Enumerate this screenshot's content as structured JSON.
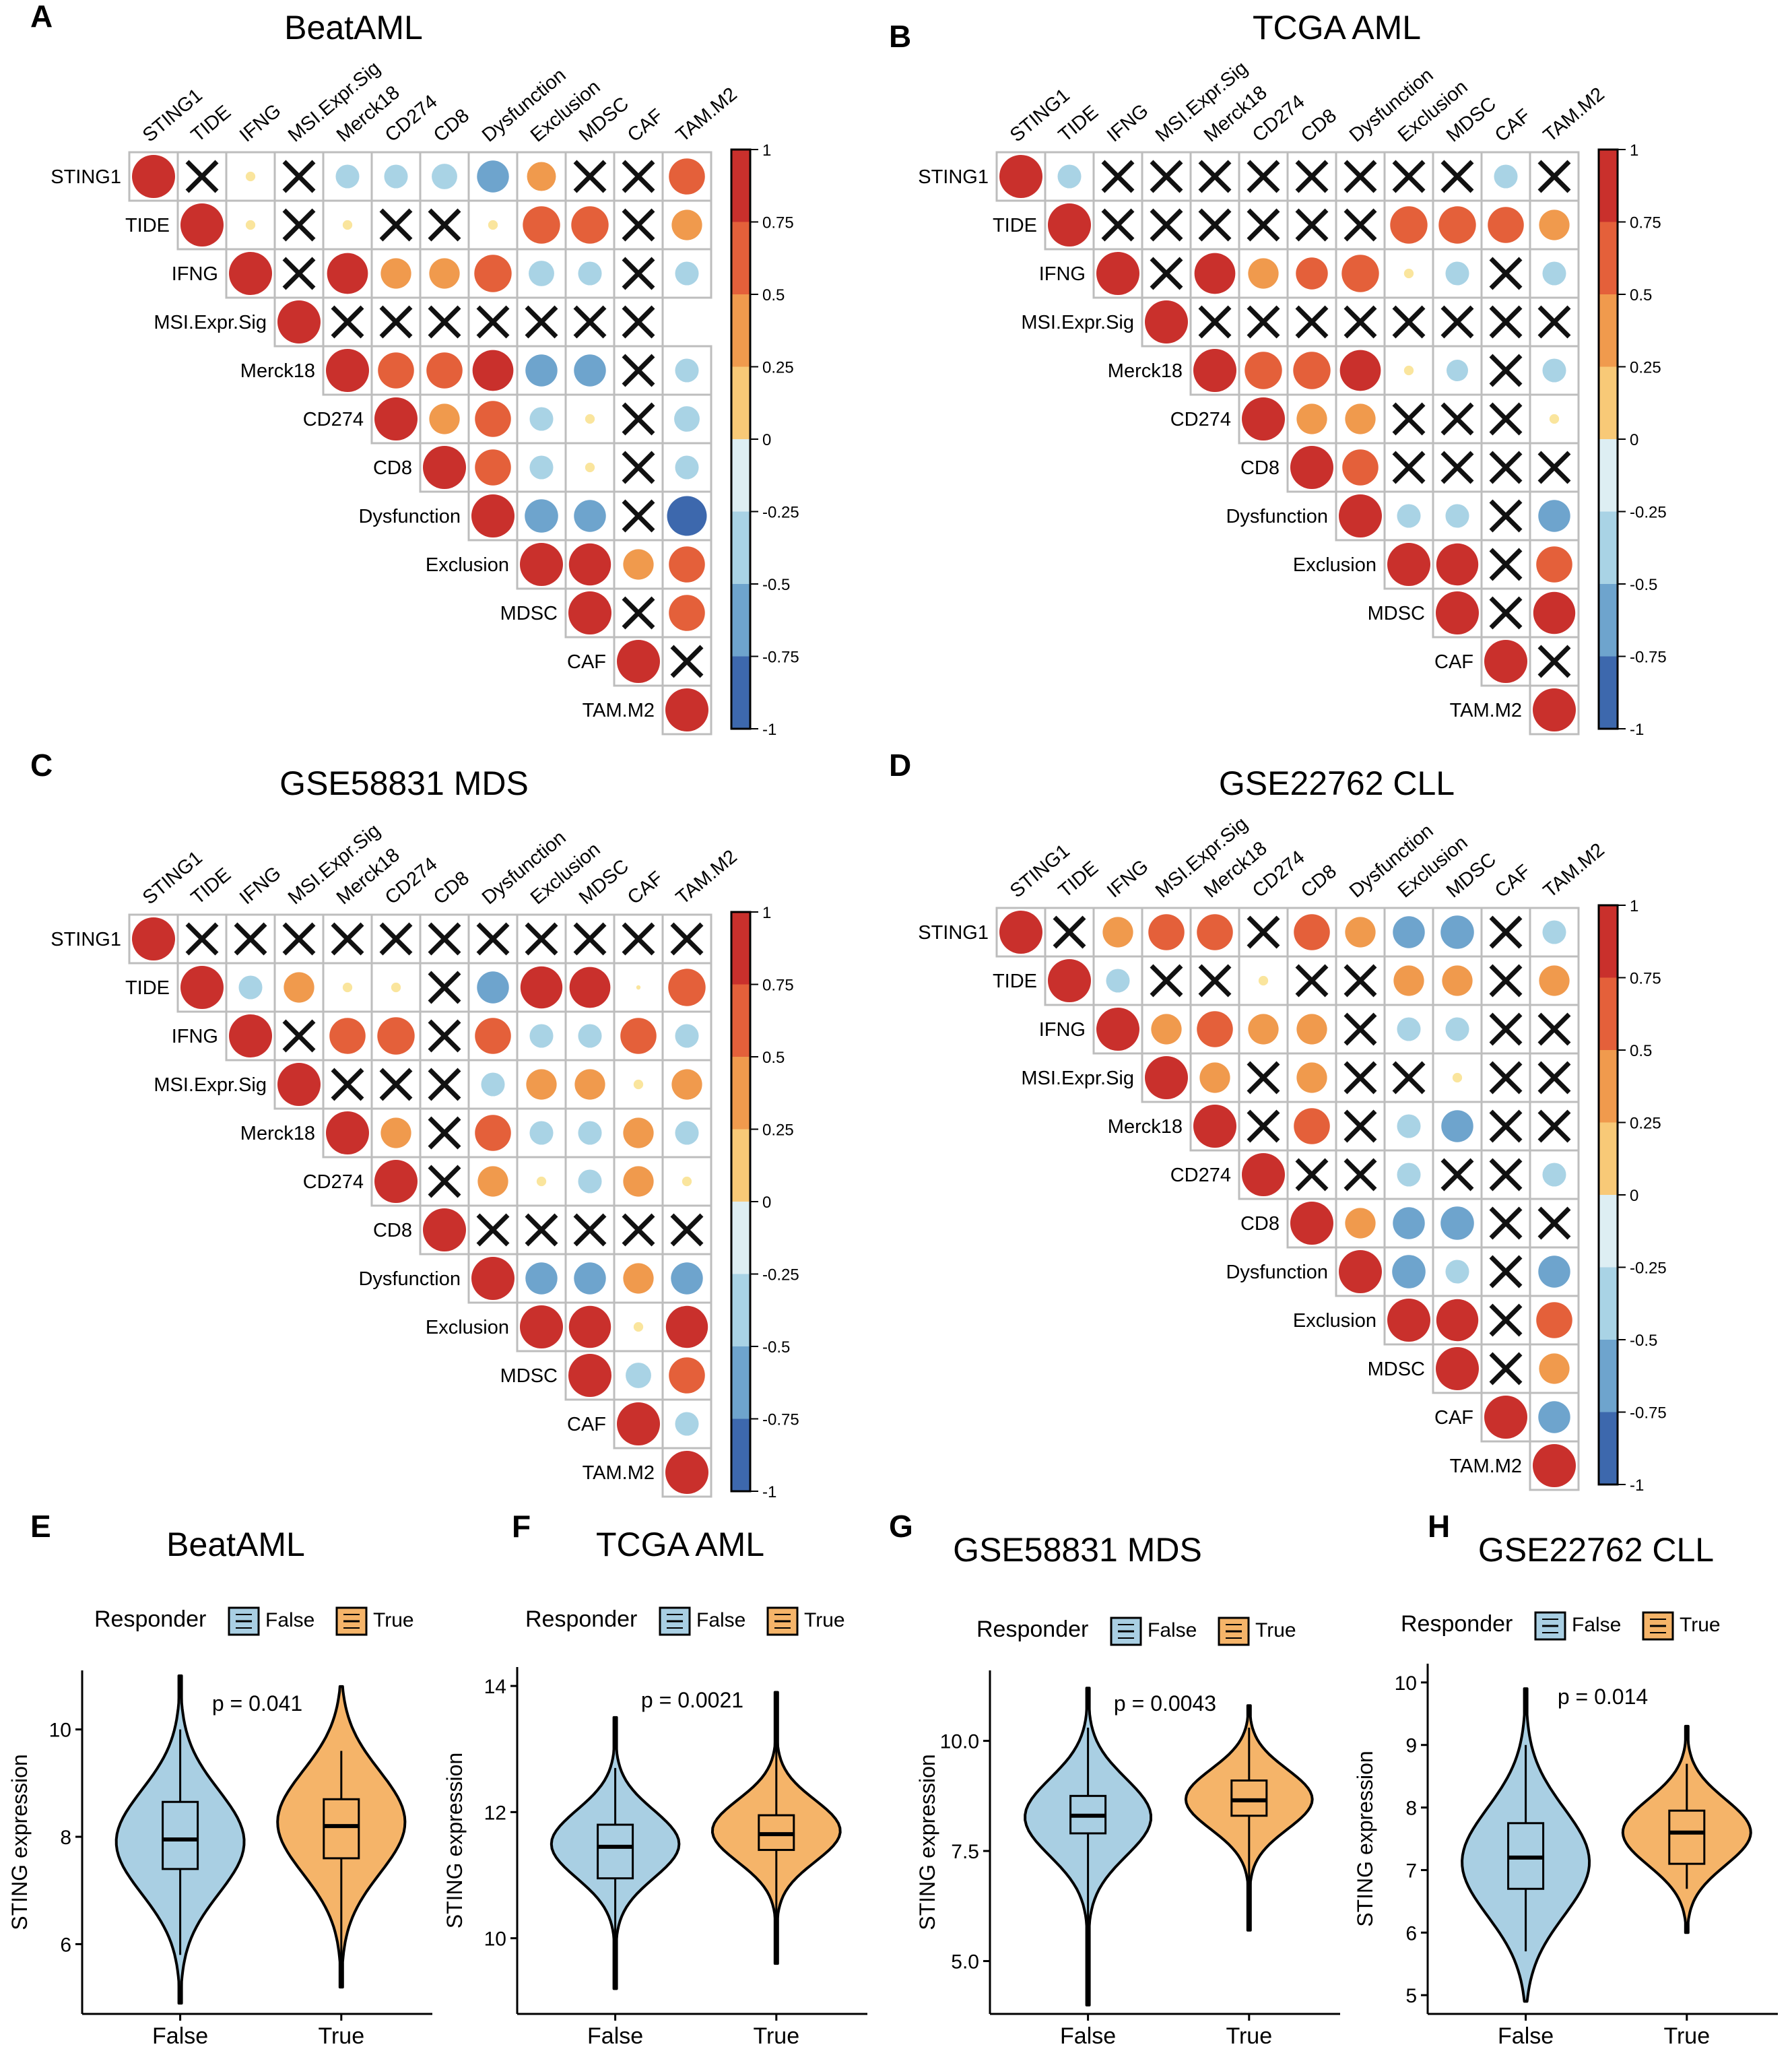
{
  "figure": {
    "panel_letters": [
      "A",
      "B",
      "C",
      "D",
      "E",
      "F",
      "G",
      "H"
    ]
  },
  "colorbar": {
    "ticks": [
      "1",
      "0.75",
      "0.5",
      "0.25",
      "0",
      "-0.25",
      "-0.5",
      "-0.75",
      "-1"
    ],
    "colors": [
      "#c9302c",
      "#e4603a",
      "#f09a4d",
      "#f8c977",
      "#fae59d",
      "#ddeef3",
      "#a9d3e5",
      "#6ea4cd",
      "#3d68ad"
    ]
  },
  "chart_data": [
    {
      "type": "heatmap",
      "panel": "A",
      "title": "BeatAML",
      "variables": [
        "STING1",
        "TIDE",
        "IFNG",
        "MSI.Expr.Sig",
        "Merck18",
        "CD274",
        "CD8",
        "Dysfunction",
        "Exclusion",
        "MDSC",
        "CAF",
        "TAM.M2"
      ],
      "insignificant_marker": "X",
      "upper_triangle": [
        [
          1,
          null,
          0.05,
          null,
          -0.3,
          -0.3,
          -0.35,
          -0.55,
          0.45,
          null,
          null,
          0.7
        ],
        [
          1,
          0.05,
          null,
          0.05,
          null,
          null,
          0.05,
          0.75,
          0.75,
          null,
          0.5
        ],
        [
          1,
          null,
          0.9,
          0.5,
          0.5,
          0.75,
          -0.35,
          -0.3,
          null,
          -0.3
        ],
        [
          1,
          null,
          null,
          null,
          null,
          null,
          null,
          null
        ],
        [
          1,
          0.7,
          0.7,
          0.9,
          -0.55,
          -0.55,
          null,
          -0.3
        ],
        [
          1,
          0.5,
          0.7,
          -0.3,
          0.05,
          null,
          -0.35
        ],
        [
          1,
          0.7,
          -0.3,
          0.05,
          null,
          -0.3
        ],
        [
          1,
          -0.6,
          -0.55,
          null,
          -0.85
        ],
        [
          1,
          0.95,
          0.5,
          0.7
        ],
        [
          1,
          null,
          0.7
        ],
        [
          1,
          null
        ],
        [
          1
        ]
      ]
    },
    {
      "type": "heatmap",
      "panel": "B",
      "title": "TCGA AML",
      "variables": [
        "STING1",
        "TIDE",
        "IFNG",
        "MSI.Expr.Sig",
        "Merck18",
        "CD274",
        "CD8",
        "Dysfunction",
        "Exclusion",
        "MDSC",
        "CAF",
        "TAM.M2"
      ],
      "insignificant_marker": "X",
      "upper_triangle": [
        [
          1,
          -0.3,
          null,
          null,
          null,
          null,
          null,
          null,
          null,
          null,
          -0.3,
          null
        ],
        [
          1,
          null,
          null,
          null,
          null,
          null,
          null,
          0.75,
          0.75,
          0.7,
          0.5
        ],
        [
          1,
          null,
          0.9,
          0.5,
          0.55,
          0.75,
          0.05,
          -0.3,
          null,
          -0.3
        ],
        [
          1,
          null,
          null,
          null,
          null,
          null,
          null,
          null,
          null
        ],
        [
          1,
          0.75,
          0.75,
          0.9,
          0.05,
          -0.25,
          null,
          -0.3
        ],
        [
          1,
          0.5,
          0.5,
          null,
          null,
          null,
          0.05
        ],
        [
          1,
          0.7,
          null,
          null,
          null,
          null
        ],
        [
          1,
          -0.3,
          -0.3,
          null,
          -0.55
        ],
        [
          1,
          0.95,
          null,
          0.7
        ],
        [
          1,
          null,
          0.95
        ],
        [
          1,
          null
        ],
        [
          1
        ]
      ]
    },
    {
      "type": "heatmap",
      "panel": "C",
      "title": "GSE58831 MDS",
      "variables": [
        "STING1",
        "TIDE",
        "IFNG",
        "MSI.Expr.Sig",
        "Merck18",
        "CD274",
        "CD8",
        "Dysfunction",
        "Exclusion",
        "MDSC",
        "CAF",
        "TAM.M2"
      ],
      "insignificant_marker": "X",
      "upper_triangle": [
        [
          1,
          null,
          null,
          null,
          null,
          null,
          null,
          null,
          null,
          null,
          null,
          null
        ],
        [
          1,
          -0.3,
          0.5,
          0.05,
          0.05,
          null,
          -0.55,
          0.95,
          0.9,
          0.01,
          0.75
        ],
        [
          1,
          null,
          0.7,
          0.75,
          null,
          0.7,
          -0.3,
          -0.3,
          0.7,
          -0.3
        ],
        [
          1,
          null,
          null,
          null,
          -0.3,
          0.5,
          0.5,
          0.05,
          0.5
        ],
        [
          1,
          0.5,
          null,
          0.7,
          -0.3,
          -0.3,
          0.5,
          -0.3
        ],
        [
          1,
          null,
          0.5,
          0.05,
          -0.3,
          0.5,
          0.05
        ],
        [
          1,
          null,
          null,
          null,
          null,
          null
        ],
        [
          1,
          -0.55,
          -0.55,
          0.5,
          -0.55
        ],
        [
          1,
          0.95,
          0.05,
          0.95
        ],
        [
          1,
          -0.35,
          0.7
        ],
        [
          1,
          -0.3
        ],
        [
          1
        ]
      ]
    },
    {
      "type": "heatmap",
      "panel": "D",
      "title": "GSE22762 CLL",
      "variables": [
        "STING1",
        "TIDE",
        "IFNG",
        "MSI.Expr.Sig",
        "Merck18",
        "CD274",
        "CD8",
        "Dysfunction",
        "Exclusion",
        "MDSC",
        "CAF",
        "TAM.M2"
      ],
      "insignificant_marker": "X",
      "upper_triangle": [
        [
          1,
          null,
          0.5,
          0.7,
          0.7,
          null,
          0.7,
          0.5,
          -0.55,
          -0.6,
          null,
          -0.3
        ],
        [
          1,
          -0.3,
          null,
          null,
          0.05,
          null,
          null,
          0.5,
          0.5,
          null,
          0.5
        ],
        [
          1,
          0.5,
          0.7,
          0.5,
          0.5,
          null,
          -0.3,
          -0.3,
          null,
          null
        ],
        [
          1,
          0.5,
          null,
          0.5,
          null,
          null,
          0.05,
          null,
          null
        ],
        [
          1,
          null,
          0.7,
          null,
          -0.3,
          -0.55,
          null,
          null
        ],
        [
          1,
          null,
          null,
          -0.3,
          null,
          null,
          -0.3
        ],
        [
          1,
          0.5,
          -0.55,
          -0.6,
          null,
          null
        ],
        [
          1,
          -0.6,
          -0.3,
          null,
          -0.55
        ],
        [
          1,
          0.95,
          null,
          0.7
        ],
        [
          1,
          null,
          0.5
        ],
        [
          1,
          -0.55
        ],
        [
          1
        ]
      ]
    },
    {
      "type": "violin",
      "panel": "E",
      "title": "BeatAML",
      "legend_title": "Responder",
      "categories": [
        "False",
        "True"
      ],
      "ylabel": "STING  expression",
      "ylim": [
        4.7,
        11.1
      ],
      "yticks": [
        "6",
        "8",
        "10"
      ],
      "p_value": "p = 0.041",
      "series": [
        {
          "name": "False",
          "color": "#a9cfe3",
          "min": 4.9,
          "max": 11.0,
          "q1": 7.4,
          "median": 7.95,
          "q3": 8.65,
          "wmin": 5.8,
          "wmax": 10.0,
          "mode": 7.9,
          "sd": 1.0
        },
        {
          "name": "True",
          "color": "#f5b469",
          "min": 5.2,
          "max": 10.8,
          "q1": 7.6,
          "median": 8.2,
          "q3": 8.7,
          "wmin": 5.6,
          "wmax": 9.6,
          "mode": 8.3,
          "sd": 1.0
        }
      ]
    },
    {
      "type": "violin",
      "panel": "F",
      "title": "TCGA AML",
      "legend_title": "Responder",
      "categories": [
        "False",
        "True"
      ],
      "ylabel": "STING  expression",
      "ylim": [
        8.8,
        14.3
      ],
      "yticks": [
        "10",
        "12",
        "14"
      ],
      "p_value": "p = 0.0021",
      "series": [
        {
          "name": "False",
          "color": "#a9cfe3",
          "min": 9.2,
          "max": 13.5,
          "q1": 10.95,
          "median": 11.45,
          "q3": 11.8,
          "wmin": 9.5,
          "wmax": 12.7,
          "mode": 11.5,
          "sd": 0.55
        },
        {
          "name": "True",
          "color": "#f5b469",
          "min": 9.6,
          "max": 13.9,
          "q1": 11.4,
          "median": 11.65,
          "q3": 11.95,
          "wmin": 10.2,
          "wmax": 13.2,
          "mode": 11.7,
          "sd": 0.5
        }
      ]
    },
    {
      "type": "violin",
      "panel": "G",
      "title": "GSE58831 MDS",
      "legend_title": "Responder",
      "categories": [
        "False",
        "True"
      ],
      "ylabel": "STING  expression",
      "ylim": [
        3.8,
        11.6
      ],
      "yticks": [
        "5.0",
        "7.5",
        "10.0"
      ],
      "p_value": "p = 0.0043",
      "series": [
        {
          "name": "False",
          "color": "#a9cfe3",
          "min": 4.0,
          "max": 11.2,
          "q1": 7.9,
          "median": 8.3,
          "q3": 8.75,
          "wmin": 4.3,
          "wmax": 10.3,
          "mode": 8.3,
          "sd": 0.9
        },
        {
          "name": "True",
          "color": "#f5b469",
          "min": 5.7,
          "max": 10.8,
          "q1": 8.3,
          "median": 8.65,
          "q3": 9.1,
          "wmin": 6.3,
          "wmax": 10.3,
          "mode": 8.7,
          "sd": 0.7
        }
      ]
    },
    {
      "type": "violin",
      "panel": "H",
      "title": "GSE22762 CLL",
      "legend_title": "Responder",
      "categories": [
        "False",
        "True"
      ],
      "ylabel": "STING  expression",
      "ylim": [
        4.7,
        10.3
      ],
      "yticks": [
        "5",
        "6",
        "7",
        "8",
        "9",
        "10"
      ],
      "p_value": "p = 0.014",
      "series": [
        {
          "name": "False",
          "color": "#a9cfe3",
          "min": 4.9,
          "max": 9.9,
          "q1": 6.7,
          "median": 7.2,
          "q3": 7.75,
          "wmin": 5.7,
          "wmax": 9.0,
          "mode": 7.1,
          "sd": 0.9
        },
        {
          "name": "True",
          "color": "#f5b469",
          "min": 6.0,
          "max": 9.3,
          "q1": 7.1,
          "median": 7.6,
          "q3": 7.95,
          "wmin": 6.7,
          "wmax": 8.7,
          "mode": 7.6,
          "sd": 0.55
        }
      ]
    }
  ]
}
